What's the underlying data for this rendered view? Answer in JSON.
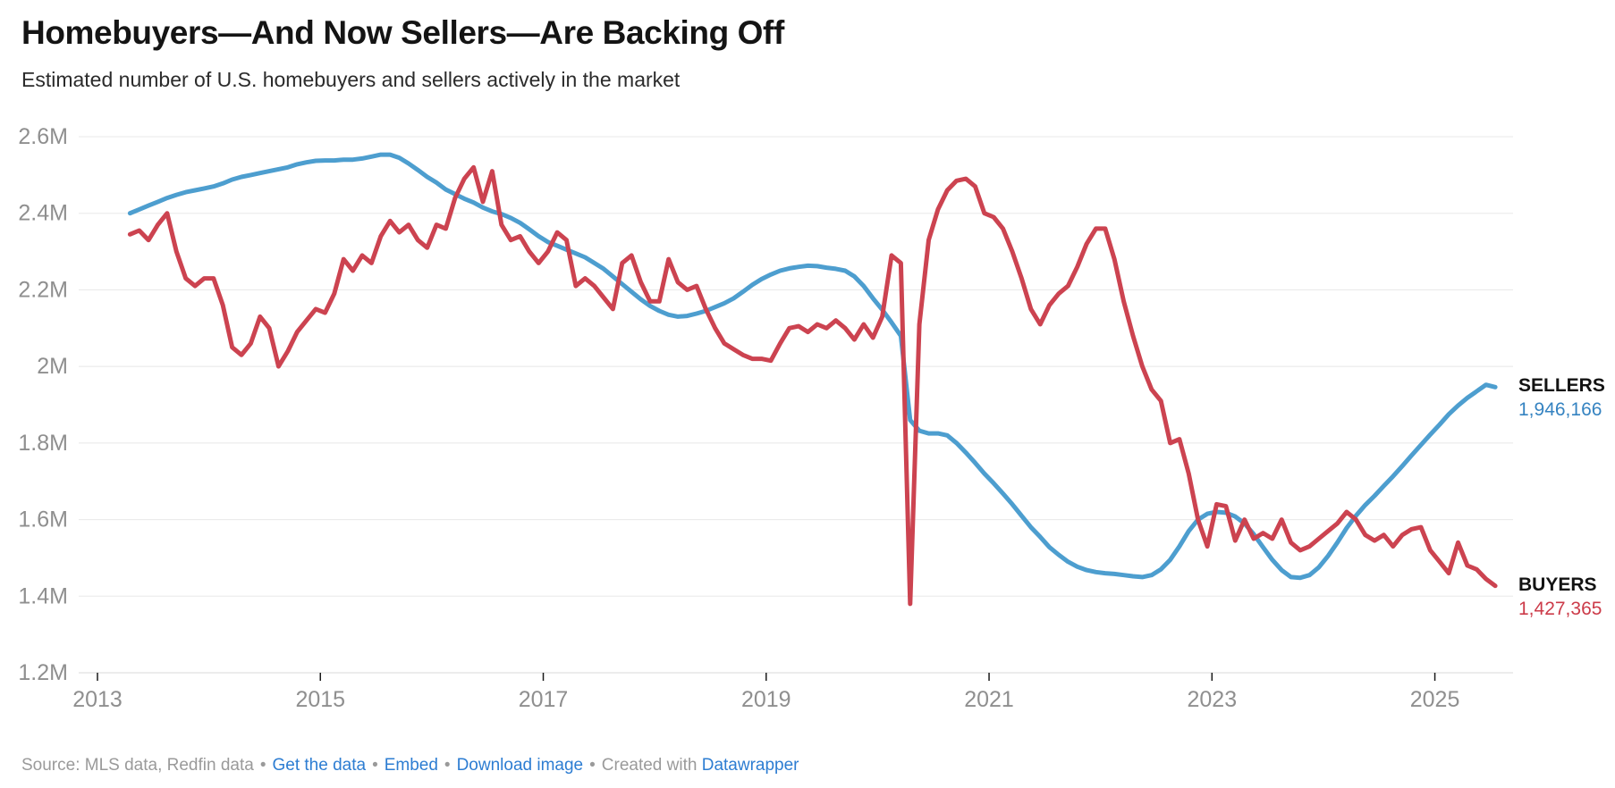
{
  "title": "Homebuyers—And Now Sellers—Are Backing Off",
  "subtitle": "Estimated number of U.S. homebuyers and sellers actively in the market",
  "footer": {
    "source_text": "Source: MLS data, Redfin data",
    "bullet": "•",
    "get_the_data": "Get the data",
    "embed": "Embed",
    "download_image": "Download image",
    "created_with": "Created with",
    "datawrapper": "Datawrapper"
  },
  "colors": {
    "sellers_line": "#4d9ecf",
    "buyers_line": "#cc4350",
    "sellers_value_text": "#3583c1",
    "buyers_value_text": "#cc3b49",
    "series_name_text": "#131313",
    "title_text": "#141414",
    "subtitle_text": "#2b2b2b",
    "axis_text": "#8f8f8f",
    "gridline": "#e8e8e8",
    "baseline": "#d8d8d8",
    "tick": "#1a1a1a",
    "footer_text": "#9a9a9a",
    "link": "#2d7dd2"
  },
  "chart_data": {
    "type": "line",
    "frequency": "monthly",
    "x_start": "2013-04",
    "x_end": "2025-07",
    "x_tick_labels": [
      "2013",
      "2015",
      "2017",
      "2019",
      "2021",
      "2023",
      "2025"
    ],
    "y_tick_labels": [
      "2.6M",
      "2.4M",
      "2.2M",
      "2M",
      "1.8M",
      "1.6M",
      "1.4M",
      "1.2M"
    ],
    "y_ticks": [
      2.6,
      2.4,
      2.2,
      2.0,
      1.8,
      1.6,
      1.4,
      1.2
    ],
    "ylim": [
      1.2,
      2.6
    ],
    "grid": "horizontal",
    "legend_position": "end-of-line-right",
    "series": [
      {
        "name": "SELLERS",
        "color": "#4d9ecf",
        "end_label": "1,946,166",
        "end_value": 1946166,
        "values_millions": [
          2.4,
          2.41,
          2.42,
          2.43,
          2.44,
          2.448,
          2.455,
          2.46,
          2.465,
          2.47,
          2.478,
          2.488,
          2.495,
          2.5,
          2.505,
          2.51,
          2.515,
          2.52,
          2.528,
          2.533,
          2.537,
          2.538,
          2.538,
          2.54,
          2.54,
          2.543,
          2.548,
          2.553,
          2.553,
          2.545,
          2.53,
          2.513,
          2.495,
          2.48,
          2.462,
          2.45,
          2.438,
          2.428,
          2.415,
          2.405,
          2.398,
          2.388,
          2.375,
          2.358,
          2.34,
          2.325,
          2.315,
          2.305,
          2.295,
          2.285,
          2.27,
          2.255,
          2.235,
          2.215,
          2.195,
          2.175,
          2.158,
          2.145,
          2.135,
          2.13,
          2.132,
          2.138,
          2.145,
          2.155,
          2.165,
          2.178,
          2.195,
          2.213,
          2.228,
          2.24,
          2.25,
          2.256,
          2.26,
          2.263,
          2.262,
          2.258,
          2.255,
          2.25,
          2.235,
          2.21,
          2.178,
          2.148,
          2.115,
          2.08,
          1.86,
          1.832,
          1.825,
          1.825,
          1.82,
          1.8,
          1.775,
          1.748,
          1.72,
          1.695,
          1.668,
          1.64,
          1.61,
          1.58,
          1.555,
          1.528,
          1.508,
          1.49,
          1.477,
          1.468,
          1.463,
          1.46,
          1.458,
          1.455,
          1.452,
          1.45,
          1.455,
          1.47,
          1.495,
          1.53,
          1.57,
          1.6,
          1.615,
          1.62,
          1.618,
          1.608,
          1.59,
          1.562,
          1.528,
          1.495,
          1.468,
          1.45,
          1.448,
          1.455,
          1.475,
          1.505,
          1.54,
          1.578,
          1.61,
          1.638,
          1.662,
          1.688,
          1.713,
          1.74,
          1.768,
          1.795,
          1.822,
          1.848,
          1.875,
          1.898,
          1.918,
          1.935,
          1.952,
          1.946
        ]
      },
      {
        "name": "BUYERS",
        "color": "#cc4350",
        "end_label": "1,427,365",
        "end_value": 1427365,
        "values_millions": [
          2.345,
          2.355,
          2.33,
          2.37,
          2.4,
          2.3,
          2.23,
          2.21,
          2.23,
          2.23,
          2.16,
          2.05,
          2.03,
          2.06,
          2.13,
          2.1,
          2.0,
          2.04,
          2.09,
          2.12,
          2.15,
          2.14,
          2.19,
          2.28,
          2.25,
          2.29,
          2.27,
          2.34,
          2.38,
          2.35,
          2.37,
          2.33,
          2.31,
          2.37,
          2.36,
          2.44,
          2.49,
          2.52,
          2.43,
          2.51,
          2.37,
          2.33,
          2.34,
          2.3,
          2.27,
          2.3,
          2.35,
          2.33,
          2.21,
          2.23,
          2.21,
          2.18,
          2.15,
          2.27,
          2.29,
          2.22,
          2.17,
          2.17,
          2.28,
          2.22,
          2.2,
          2.21,
          2.15,
          2.1,
          2.06,
          2.045,
          2.03,
          2.02,
          2.02,
          2.015,
          2.06,
          2.1,
          2.105,
          2.09,
          2.11,
          2.1,
          2.12,
          2.1,
          2.07,
          2.11,
          2.075,
          2.13,
          2.29,
          2.27,
          1.38,
          2.11,
          2.33,
          2.41,
          2.46,
          2.485,
          2.49,
          2.47,
          2.4,
          2.39,
          2.36,
          2.3,
          2.23,
          2.15,
          2.11,
          2.16,
          2.19,
          2.21,
          2.26,
          2.32,
          2.36,
          2.36,
          2.28,
          2.17,
          2.08,
          2.0,
          1.94,
          1.91,
          1.8,
          1.81,
          1.72,
          1.6,
          1.53,
          1.64,
          1.635,
          1.545,
          1.6,
          1.55,
          1.565,
          1.55,
          1.6,
          1.54,
          1.52,
          1.53,
          1.55,
          1.57,
          1.59,
          1.62,
          1.6,
          1.56,
          1.545,
          1.56,
          1.53,
          1.56,
          1.575,
          1.58,
          1.52,
          1.49,
          1.46,
          1.54,
          1.48,
          1.47,
          1.445,
          1.427
        ]
      }
    ]
  }
}
